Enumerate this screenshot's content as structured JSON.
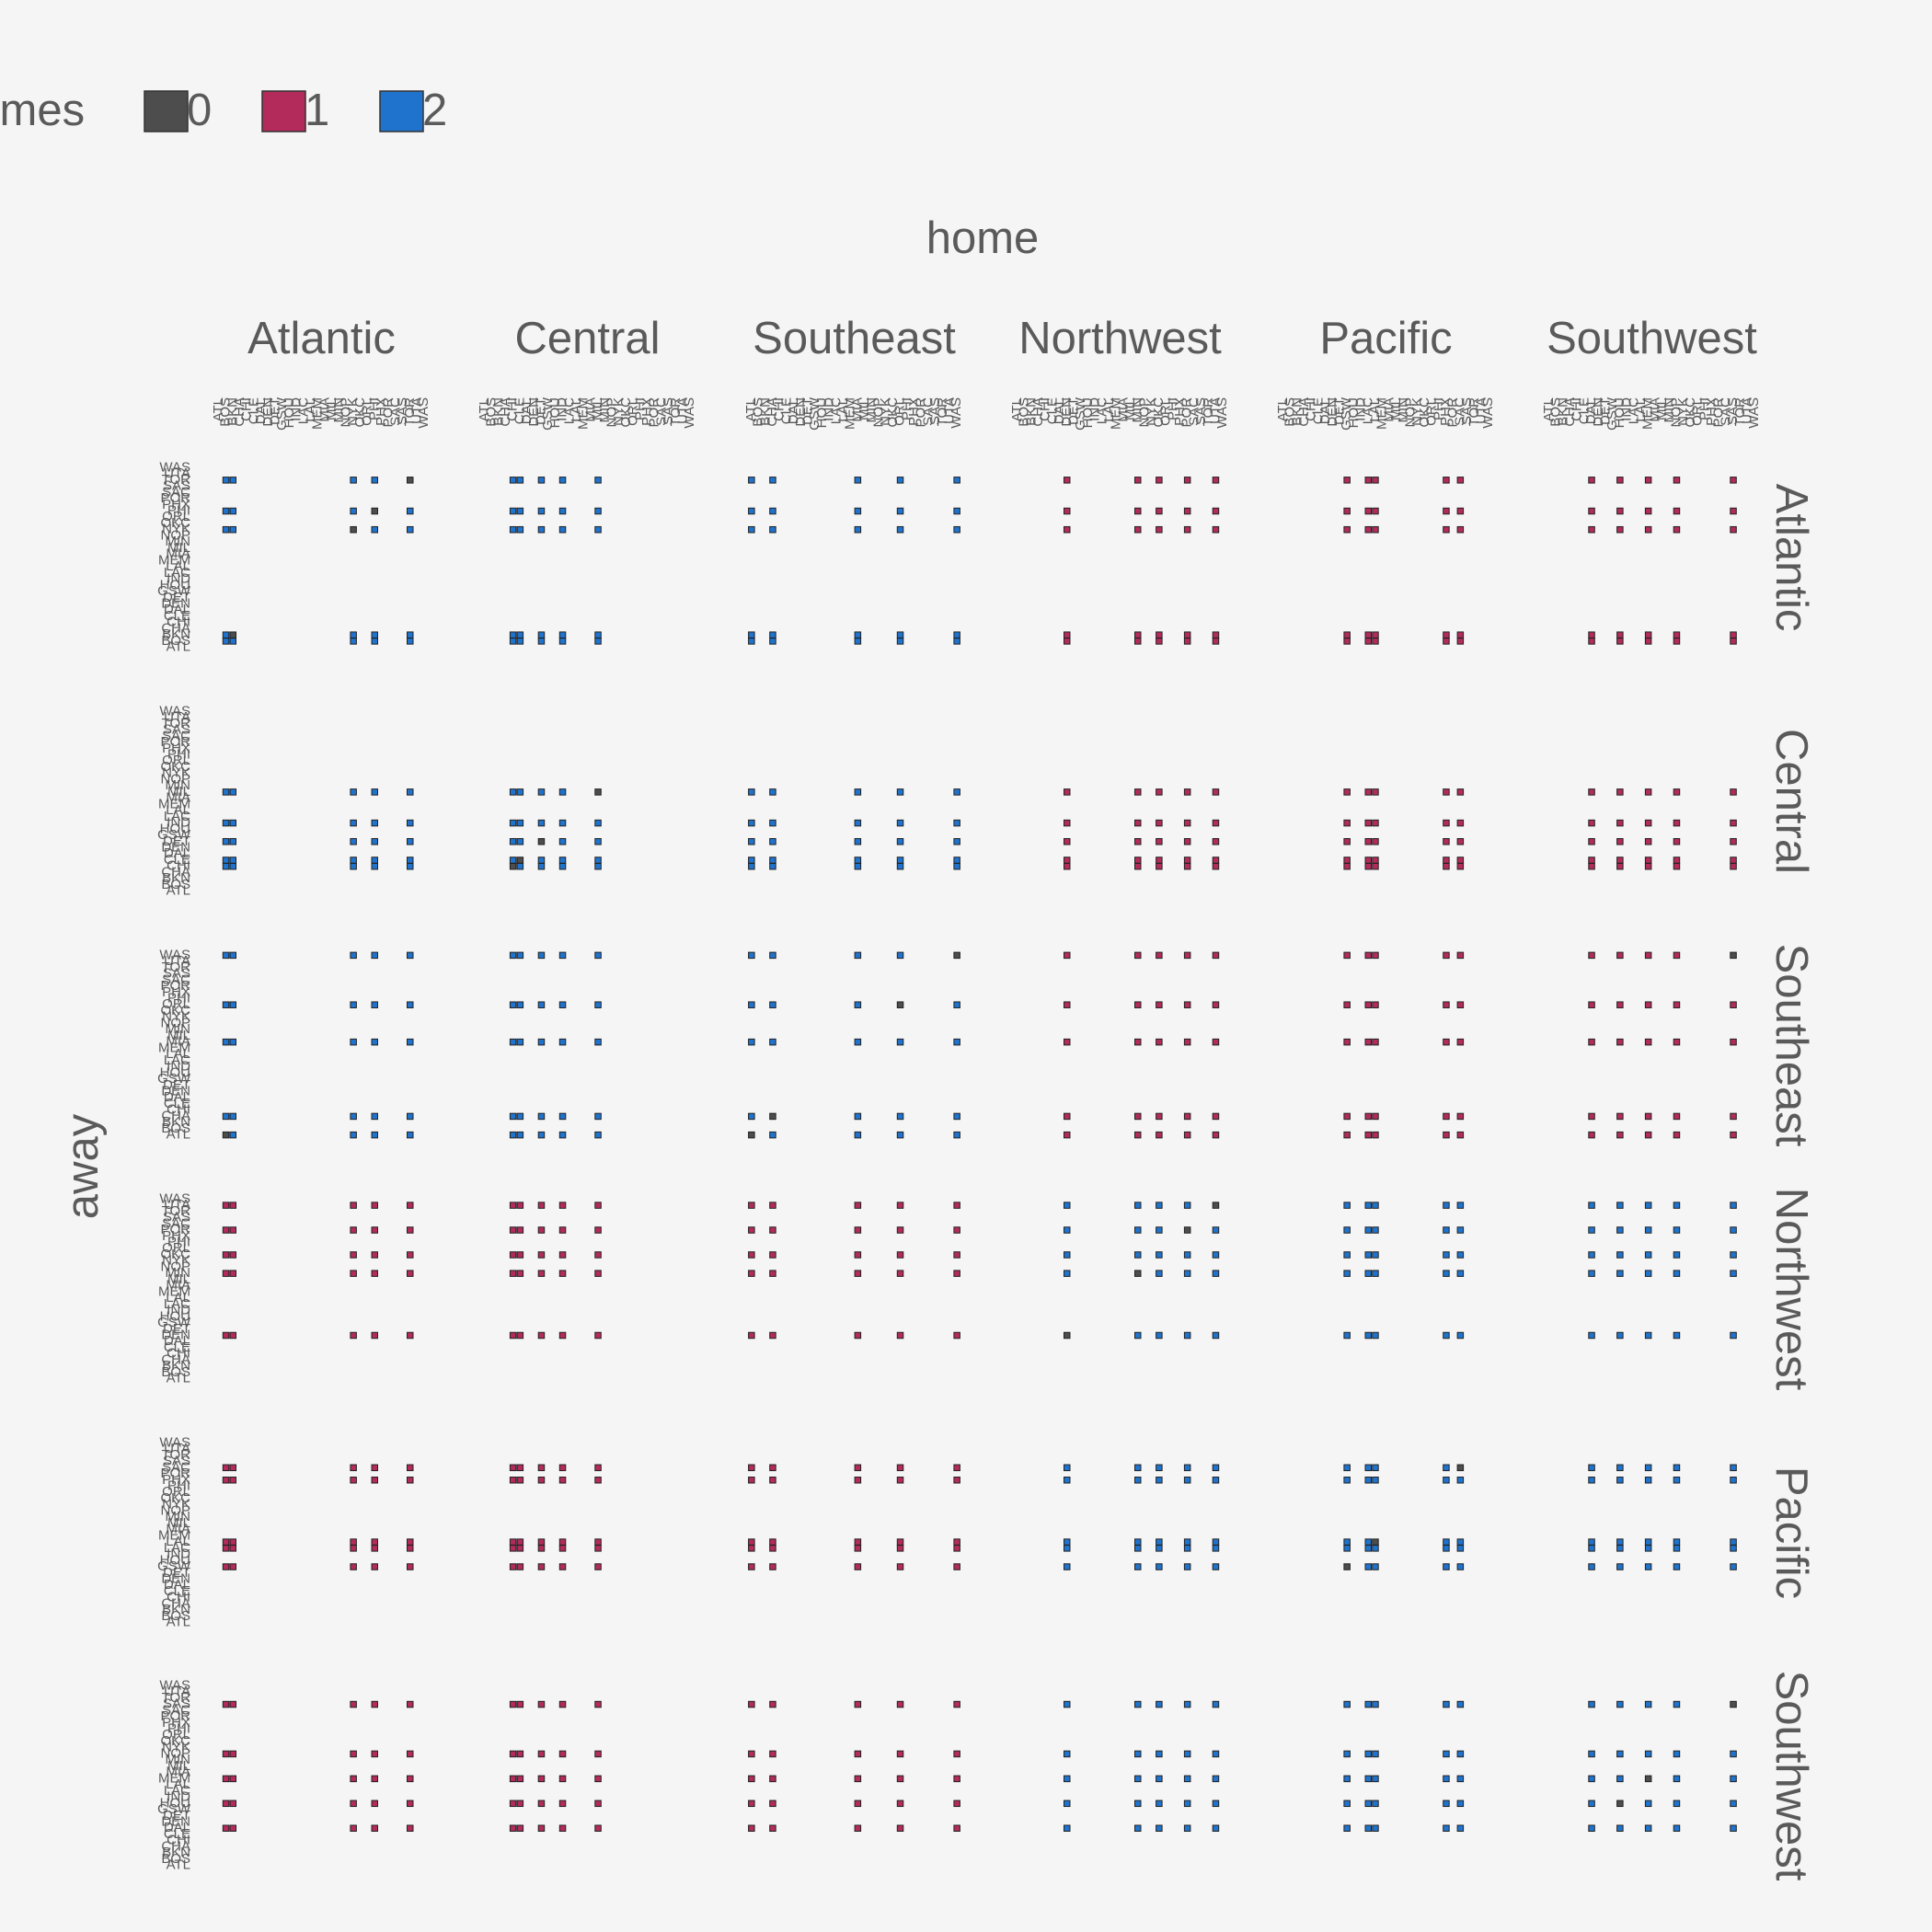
{
  "chart_data": {
    "type": "heatmap",
    "title": "",
    "xlabel": "home",
    "ylabel": "away",
    "legend": {
      "title": "games",
      "placement": "top-left",
      "entries": [
        {
          "label": "0",
          "color": "#4d4d4d"
        },
        {
          "label": "1",
          "color": "#b22b5b"
        },
        {
          "label": "2",
          "color": "#1f73cc"
        }
      ]
    },
    "divisions": [
      "Atlantic",
      "Central",
      "Southeast",
      "Northwest",
      "Pacific",
      "Southwest"
    ],
    "teams_by_division": {
      "Atlantic": [
        "BOS",
        "BKN",
        "NYK",
        "PHI",
        "TOR"
      ],
      "Central": [
        "CHI",
        "CLE",
        "DET",
        "IND",
        "MIL"
      ],
      "Southeast": [
        "ATL",
        "CHA",
        "MIA",
        "ORL",
        "WAS"
      ],
      "Northwest": [
        "DEN",
        "MIN",
        "OKC",
        "POR",
        "UTA"
      ],
      "Pacific": [
        "GSW",
        "LAC",
        "LAL",
        "PHX",
        "SAC"
      ],
      "Southwest": [
        "DAL",
        "HOU",
        "MEM",
        "NOP",
        "SAS"
      ]
    },
    "axis_teams": [
      "ATL",
      "BOS",
      "BKN",
      "CHA",
      "CHI",
      "CLE",
      "DAL",
      "DEN",
      "DET",
      "GSW",
      "HOU",
      "IND",
      "LAC",
      "LAL",
      "MEM",
      "MIA",
      "MIL",
      "MIN",
      "NOP",
      "NYK",
      "OKC",
      "ORL",
      "PHI",
      "PHX",
      "POR",
      "SAC",
      "SAS",
      "TOR",
      "UTA",
      "WAS"
    ],
    "panel_pattern": {
      "Atlantic": {
        "Atlantic": 2,
        "Central": 2,
        "Southeast": 2,
        "Northwest": 1,
        "Pacific": 1,
        "Southwest": 1
      },
      "Central": {
        "Atlantic": 2,
        "Central": 2,
        "Southeast": 2,
        "Northwest": 1,
        "Pacific": 1,
        "Southwest": 1
      },
      "Southeast": {
        "Atlantic": 2,
        "Central": 2,
        "Southeast": 2,
        "Northwest": 1,
        "Pacific": 1,
        "Southwest": 1
      },
      "Northwest": {
        "Atlantic": 1,
        "Central": 1,
        "Southeast": 1,
        "Northwest": 2,
        "Pacific": 2,
        "Southwest": 2
      },
      "Pacific": {
        "Atlantic": 1,
        "Central": 1,
        "Southeast": 1,
        "Northwest": 2,
        "Pacific": 2,
        "Southwest": 2
      },
      "Southwest": {
        "Atlantic": 1,
        "Central": 1,
        "Southeast": 1,
        "Northwest": 2,
        "Pacific": 2,
        "Southwest": 2
      }
    },
    "zero_game_cells": [
      {
        "away": "ATL",
        "home": "BOS"
      },
      {
        "away": "BKN",
        "home": "BKN"
      },
      {
        "away": "NYK",
        "home": "NYK"
      },
      {
        "away": "TOR",
        "home": "TOR"
      },
      {
        "away": "PHI",
        "home": "PHI"
      },
      {
        "away": "CHI",
        "home": "CHI"
      },
      {
        "away": "CLE",
        "home": "CLE"
      },
      {
        "away": "DET",
        "home": "DET"
      },
      {
        "away": "MIL",
        "home": "MIL"
      },
      {
        "away": "ATL",
        "home": "ATL"
      },
      {
        "away": "CHA",
        "home": "CHA"
      },
      {
        "away": "ORL",
        "home": "ORL"
      },
      {
        "away": "WAS",
        "home": "WAS"
      },
      {
        "away": "DEN",
        "home": "DEN"
      },
      {
        "away": "MIN",
        "home": "MIN"
      },
      {
        "away": "POR",
        "home": "POR"
      },
      {
        "away": "UTA",
        "home": "UTA"
      },
      {
        "away": "GSW",
        "home": "GSW"
      },
      {
        "away": "LAL",
        "home": "LAL"
      },
      {
        "away": "SAC",
        "home": "SAC"
      },
      {
        "away": "HOU",
        "home": "HOU"
      },
      {
        "away": "MEM",
        "home": "MEM"
      },
      {
        "away": "SAS",
        "home": "SAS"
      },
      {
        "away": "WAS",
        "home": "SAS"
      }
    ],
    "grid": false
  }
}
